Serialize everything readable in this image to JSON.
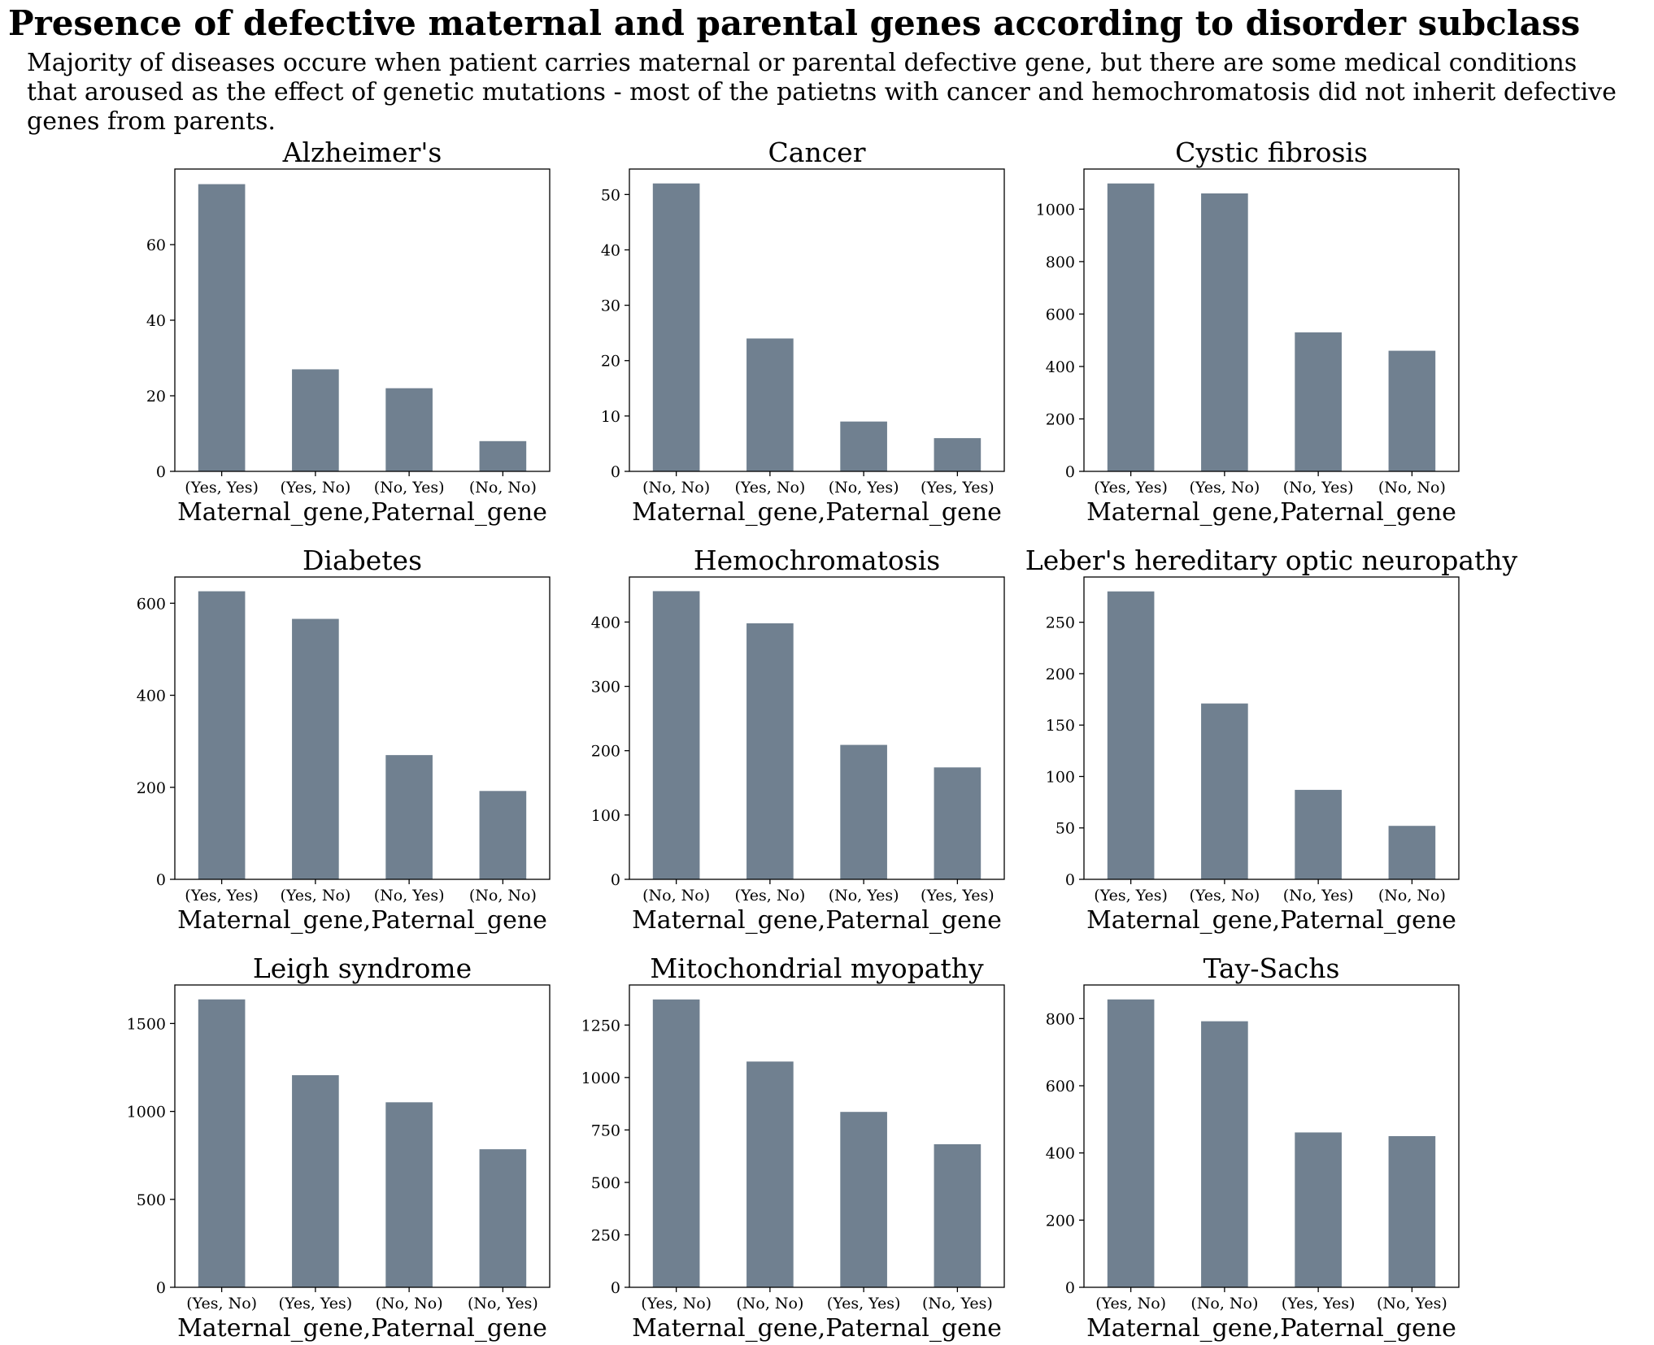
{
  "title": "Presence of defective maternal and parental genes according to disorder subclass",
  "subtitle_lines": [
    "Majority of diseases occure when patient carries maternal or parental defective gene, but there are some medical conditions",
    "that aroused as the effect of genetic mutations - most of the patietns with cancer and hemochromatosis did not inherit defective",
    "genes from parents."
  ],
  "colors": {
    "bar": "#708090",
    "axis": "#000000"
  },
  "chart_data": [
    {
      "type": "bar",
      "title": "Alzheimer's",
      "xlabel": "Maternal_gene,Paternal_gene",
      "ylabel": "",
      "categories": [
        "(Yes, Yes)",
        "(Yes, No)",
        "(No, Yes)",
        "(No, No)"
      ],
      "values": [
        76,
        27,
        22,
        8
      ],
      "ylim": [
        0,
        80
      ],
      "yticks": [
        0,
        20,
        40,
        60
      ]
    },
    {
      "type": "bar",
      "title": "Cancer",
      "xlabel": "Maternal_gene,Paternal_gene",
      "ylabel": "",
      "categories": [
        "(No, No)",
        "(Yes, No)",
        "(No, Yes)",
        "(Yes, Yes)"
      ],
      "values": [
        52,
        24,
        9,
        6
      ],
      "ylim": [
        0,
        54.6
      ],
      "yticks": [
        0,
        10,
        20,
        30,
        40,
        50
      ]
    },
    {
      "type": "bar",
      "title": "Cystic fibrosis",
      "xlabel": "Maternal_gene,Paternal_gene",
      "ylabel": "",
      "categories": [
        "(Yes, Yes)",
        "(Yes, No)",
        "(No, Yes)",
        "(No, No)"
      ],
      "values": [
        1098,
        1060,
        530,
        460
      ],
      "ylim": [
        0,
        1153
      ],
      "yticks": [
        0,
        200,
        400,
        600,
        800,
        1000
      ]
    },
    {
      "type": "bar",
      "title": "Diabetes",
      "xlabel": "Maternal_gene,Paternal_gene",
      "ylabel": "",
      "categories": [
        "(Yes, Yes)",
        "(Yes, No)",
        "(No, Yes)",
        "(No, No)"
      ],
      "values": [
        626,
        566,
        270,
        192
      ],
      "ylim": [
        0,
        657
      ],
      "yticks": [
        0,
        200,
        400,
        600
      ]
    },
    {
      "type": "bar",
      "title": "Hemochromatosis",
      "xlabel": "Maternal_gene,Paternal_gene",
      "ylabel": "",
      "categories": [
        "(No, No)",
        "(Yes, No)",
        "(No, Yes)",
        "(Yes, Yes)"
      ],
      "values": [
        448,
        398,
        209,
        174
      ],
      "ylim": [
        0,
        470
      ],
      "yticks": [
        0,
        100,
        200,
        300,
        400
      ]
    },
    {
      "type": "bar",
      "title": "Leber's hereditary optic neuropathy",
      "xlabel": "Maternal_gene,Paternal_gene",
      "ylabel": "",
      "categories": [
        "(Yes, Yes)",
        "(Yes, No)",
        "(No, Yes)",
        "(No, No)"
      ],
      "values": [
        280,
        171,
        87,
        52
      ],
      "ylim": [
        0,
        294
      ],
      "yticks": [
        0,
        50,
        100,
        150,
        200,
        250
      ]
    },
    {
      "type": "bar",
      "title": "Leigh syndrome",
      "xlabel": "Maternal_gene,Paternal_gene",
      "ylabel": "",
      "categories": [
        "(Yes, No)",
        "(Yes, Yes)",
        "(No, No)",
        "(No, Yes)"
      ],
      "values": [
        1637,
        1206,
        1052,
        785
      ],
      "ylim": [
        0,
        1719
      ],
      "yticks": [
        0,
        500,
        1000,
        1500
      ]
    },
    {
      "type": "bar",
      "title": "Mitochondrial myopathy",
      "xlabel": "Maternal_gene,Paternal_gene",
      "ylabel": "",
      "categories": [
        "(Yes, No)",
        "(No, No)",
        "(Yes, Yes)",
        "(No, Yes)"
      ],
      "values": [
        1372,
        1076,
        836,
        682
      ],
      "ylim": [
        0,
        1441
      ],
      "yticks": [
        0,
        250,
        500,
        750,
        1000,
        1250
      ]
    },
    {
      "type": "bar",
      "title": "Tay-Sachs",
      "xlabel": "Maternal_gene,Paternal_gene",
      "ylabel": "",
      "categories": [
        "(Yes, No)",
        "(No, No)",
        "(Yes, Yes)",
        "(No, Yes)"
      ],
      "values": [
        857,
        792,
        461,
        450
      ],
      "ylim": [
        0,
        900
      ],
      "yticks": [
        0,
        200,
        400,
        600,
        800
      ]
    }
  ]
}
